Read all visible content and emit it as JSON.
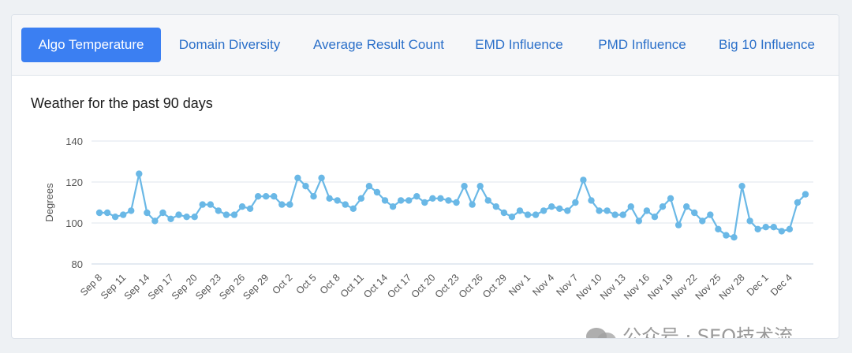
{
  "tabs": [
    {
      "label": "Algo Temperature",
      "active": true
    },
    {
      "label": "Domain Diversity",
      "active": false
    },
    {
      "label": "Average Result Count",
      "active": false
    },
    {
      "label": "EMD Influence",
      "active": false
    },
    {
      "label": "PMD Influence",
      "active": false
    },
    {
      "label": "Big 10 Influence",
      "active": false
    }
  ],
  "colors": {
    "accent": "#3b7ff2",
    "series": "#6ab8e6",
    "grid": "#dfe6ee",
    "text": "#555555"
  },
  "watermark": {
    "text": "公众号 · SEO技术流",
    "icon": "wechat-icon"
  },
  "chart_data": {
    "type": "line",
    "title": "Weather for the past 90 days",
    "xlabel": "",
    "ylabel": "Degrees",
    "ylim": [
      80,
      140
    ],
    "yticks": [
      80,
      100,
      120,
      140
    ],
    "grid": true,
    "x_tick_labels": [
      "Sep 8",
      "Sep 11",
      "Sep 14",
      "Sep 17",
      "Sep 20",
      "Sep 23",
      "Sep 26",
      "Sep 29",
      "Oct 2",
      "Oct 5",
      "Oct 8",
      "Oct 11",
      "Oct 14",
      "Oct 17",
      "Oct 20",
      "Oct 23",
      "Oct 26",
      "Oct 29",
      "Nov 1",
      "Nov 4",
      "Nov 7",
      "Nov 10",
      "Nov 13",
      "Nov 16",
      "Nov 19",
      "Nov 22",
      "Nov 25",
      "Nov 28",
      "Dec 1",
      "Dec 4"
    ],
    "series": [
      {
        "name": "Algo Temperature",
        "values": [
          105,
          105,
          103,
          104,
          106,
          124,
          105,
          101,
          105,
          102,
          104,
          103,
          103,
          109,
          109,
          106,
          104,
          104,
          108,
          107,
          113,
          113,
          113,
          109,
          109,
          122,
          118,
          113,
          122,
          112,
          111,
          109,
          107,
          112,
          118,
          115,
          111,
          108,
          111,
          111,
          113,
          110,
          112,
          112,
          111,
          110,
          118,
          109,
          118,
          111,
          108,
          105,
          103,
          106,
          104,
          104,
          106,
          108,
          107,
          106,
          110,
          121,
          111,
          106,
          106,
          104,
          104,
          108,
          101,
          106,
          103,
          108,
          112,
          99,
          108,
          105,
          101,
          104,
          97,
          94,
          93,
          118,
          101,
          97,
          98,
          98,
          96,
          97,
          110,
          114
        ]
      }
    ]
  }
}
